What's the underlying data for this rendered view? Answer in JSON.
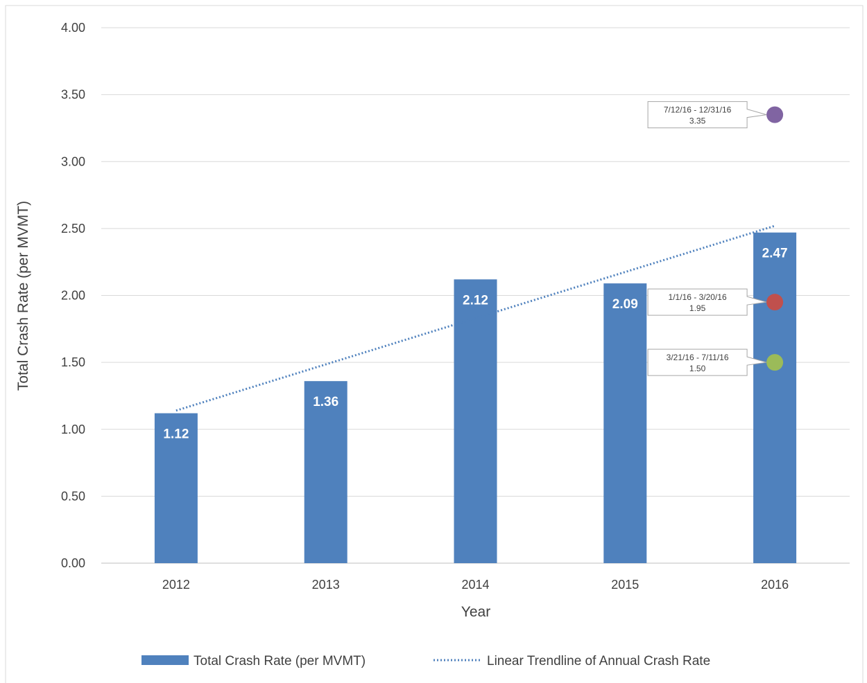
{
  "chart_data": {
    "type": "bar",
    "categories": [
      "2012",
      "2013",
      "2014",
      "2015",
      "2016"
    ],
    "series": [
      {
        "name": "Total Crash Rate (per MVMT)",
        "values": [
          1.12,
          1.36,
          2.12,
          2.09,
          2.47
        ],
        "labels": [
          "1.12",
          "1.36",
          "2.12",
          "2.09",
          "2.47"
        ],
        "color": "#4f81bd"
      }
    ],
    "trendline": {
      "name": "Linear Trendline of Annual Crash Rate",
      "start": {
        "x": "2012",
        "y": 1.14
      },
      "end": {
        "x": "2016",
        "y": 2.52
      },
      "color": "#4f81bd"
    },
    "points": [
      {
        "x": "2016",
        "y": 3.35,
        "label": "7/12/16 - 12/31/16",
        "value_label": "3.35",
        "color": "#8064a2"
      },
      {
        "x": "2016",
        "y": 1.95,
        "label": "1/1/16 - 3/20/16",
        "value_label": "1.95",
        "color": "#c0504d"
      },
      {
        "x": "2016",
        "y": 1.5,
        "label": "3/21/16 - 7/11/16",
        "value_label": "1.50",
        "color": "#9bbb59"
      }
    ],
    "xlabel": "Year",
    "ylabel": "Total Crash Rate (per MVMT)",
    "ylim": [
      0,
      4
    ],
    "yticks": [
      "0.00",
      "0.50",
      "1.00",
      "1.50",
      "2.00",
      "2.50",
      "3.00",
      "3.50",
      "4.00"
    ],
    "grid": true,
    "legend": "bottom"
  }
}
